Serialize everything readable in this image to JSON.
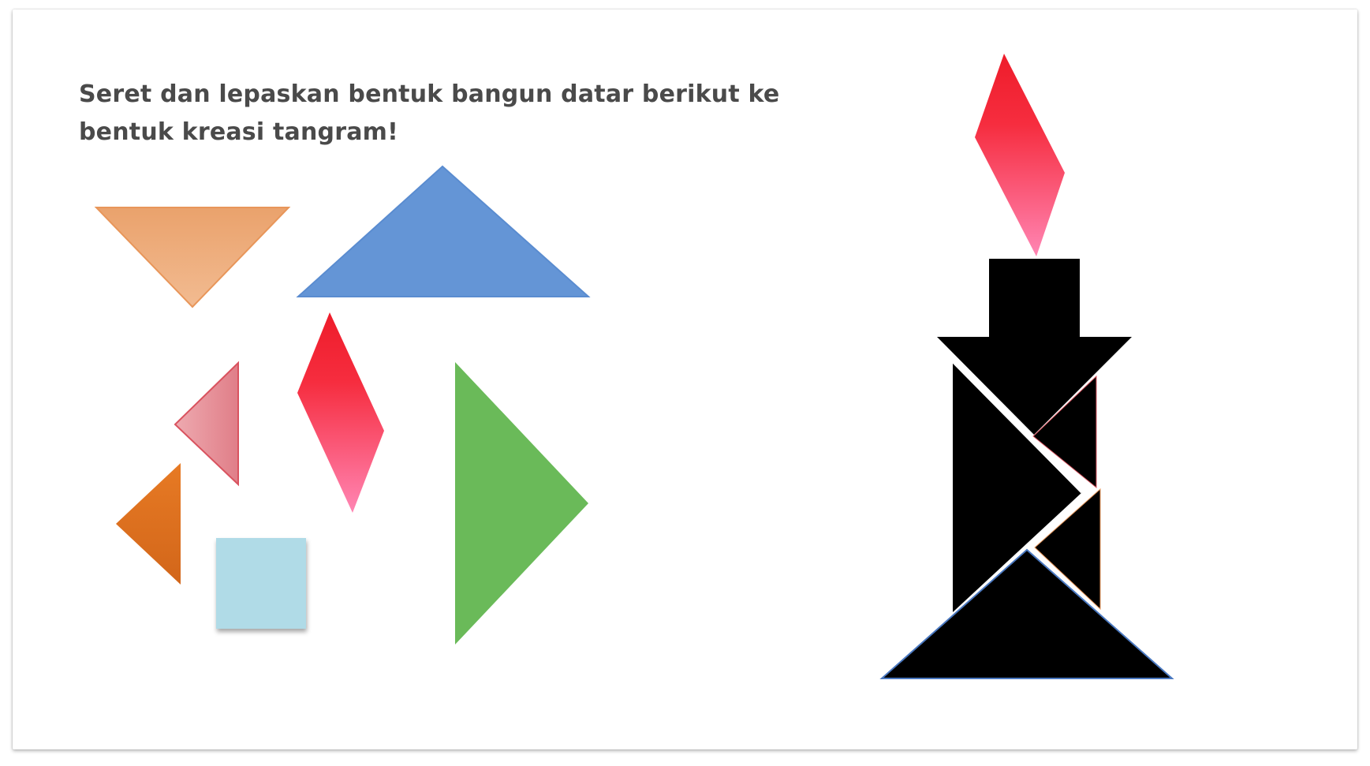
{
  "instruction": {
    "text": "Seret dan lepaskan bentuk bangun datar berikut ke bentuk kreasi tangram!"
  },
  "pieces": [
    {
      "name": "orange-medium-triangle",
      "shape": "triangle",
      "color": "#eaa26c",
      "color_end": "#f2bb91",
      "outline": "#e8965a"
    },
    {
      "name": "blue-large-triangle",
      "shape": "triangle",
      "color": "#6495d6",
      "outline": "#5a8cd0"
    },
    {
      "name": "pink-small-triangle",
      "shape": "triangle",
      "color": "#eeaab0",
      "color_end": "#e07e88",
      "outline": "#d9535f"
    },
    {
      "name": "red-parallelogram",
      "shape": "parallelogram",
      "color": "#ee1c2a",
      "color_end": "#ff86b4"
    },
    {
      "name": "green-large-triangle",
      "shape": "triangle",
      "color": "#6aba59"
    },
    {
      "name": "dark-orange-small-triangle",
      "shape": "triangle",
      "color": "#e77a24",
      "color_end": "#d2661a"
    },
    {
      "name": "light-blue-square",
      "shape": "square",
      "color": "#b0dbe7"
    }
  ],
  "target": {
    "name": "candle-silhouette",
    "fill": "#000000",
    "flame_color": "#ee1c2a",
    "flame_color_end": "#ff86b4"
  }
}
